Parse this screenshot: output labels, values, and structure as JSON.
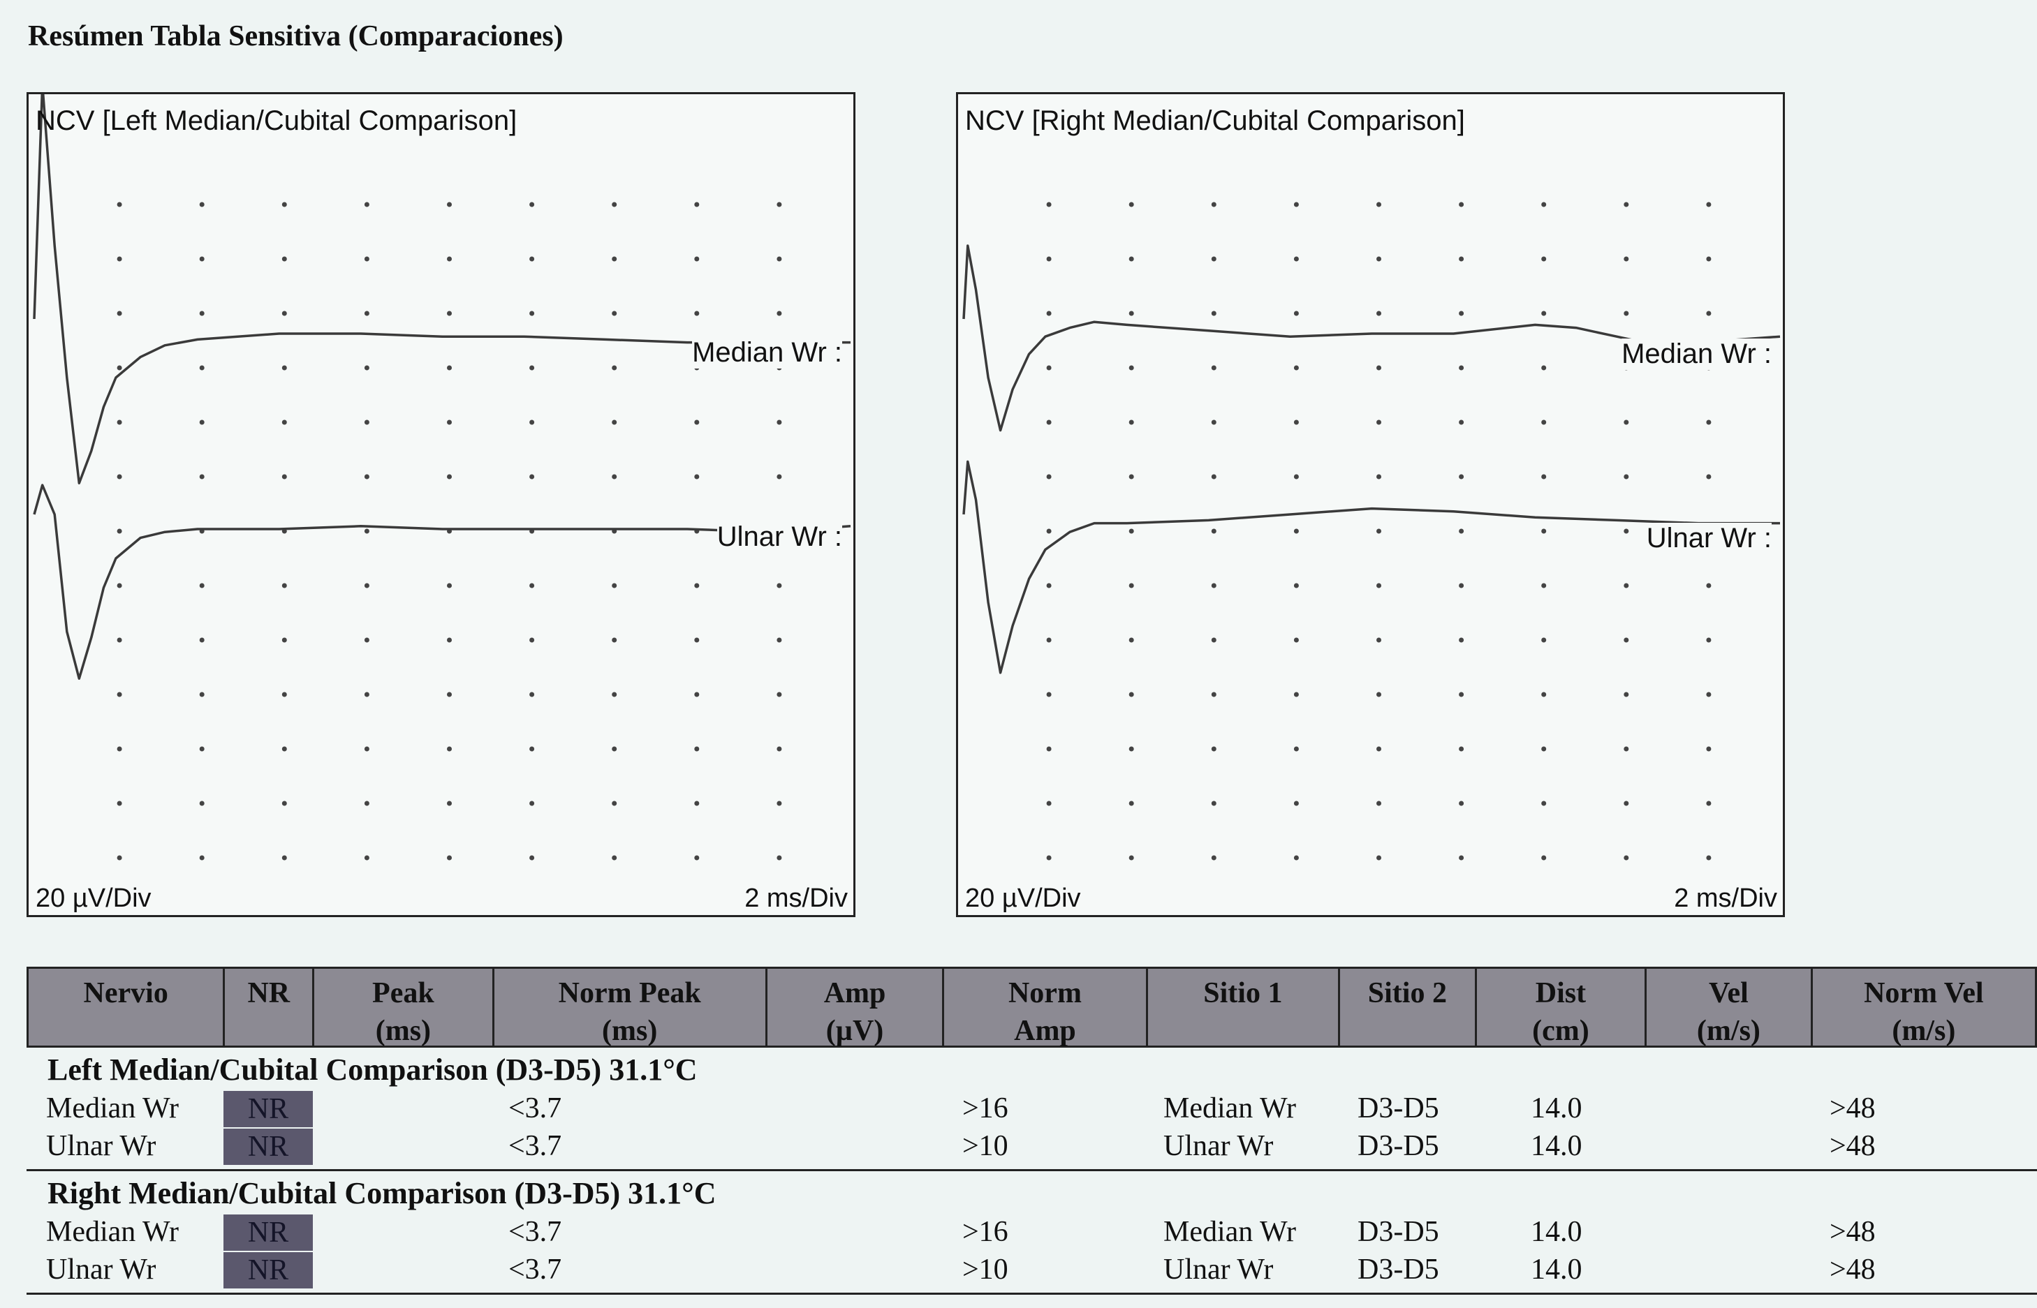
{
  "page_title": "Resúmen Tabla Sensitiva (Comparaciones)",
  "charts": [
    {
      "title": "NCV [Left Median/Cubital Comparison]",
      "y_scale": "20 µV/Div",
      "x_scale": "2 ms/Div",
      "traces": [
        "Median Wr :",
        "Ulnar Wr :"
      ]
    },
    {
      "title": "NCV [Right Median/Cubital Comparison]",
      "y_scale": "20 µV/Div",
      "x_scale": "2 ms/Div",
      "traces": [
        "Median Wr :",
        "Ulnar Wr :"
      ]
    }
  ],
  "chart_data": [
    {
      "type": "line",
      "title": "NCV [Left Median/Cubital Comparison]",
      "grid": true,
      "x_divisions": 10,
      "y_divisions": 10,
      "x_per_div": "2 ms/Div",
      "y_per_div": "20 µV/Div",
      "series": [
        {
          "name": "Median Wr :",
          "x": [
            0,
            0.1,
            0.25,
            0.4,
            0.55,
            0.7,
            0.85,
            1.0,
            1.3,
            1.6,
            2.0,
            3.0,
            4.0,
            5.0,
            6.0,
            7.0,
            8.0,
            9.0,
            10.0
          ],
          "y": [
            0,
            80,
            25,
            -20,
            -56,
            -45,
            -30,
            -20,
            -13,
            -9,
            -7,
            -5,
            -5,
            -6,
            -6,
            -7,
            -8,
            -8,
            -8
          ]
        },
        {
          "name": "Ulnar Wr :",
          "x": [
            0,
            0.1,
            0.25,
            0.4,
            0.55,
            0.7,
            0.85,
            1.0,
            1.3,
            1.6,
            2.0,
            3.0,
            4.0,
            5.0,
            6.0,
            7.0,
            8.0,
            9.0,
            10.0
          ],
          "y": [
            0,
            10,
            0,
            -40,
            -56,
            -42,
            -25,
            -15,
            -8,
            -6,
            -5,
            -5,
            -4,
            -5,
            -5,
            -5,
            -5,
            -6,
            -4
          ]
        }
      ]
    },
    {
      "type": "line",
      "title": "NCV [Right Median/Cubital Comparison]",
      "grid": true,
      "x_divisions": 10,
      "y_divisions": 10,
      "x_per_div": "2 ms/Div",
      "y_per_div": "20 µV/Div",
      "series": [
        {
          "name": "Median Wr :",
          "x": [
            0,
            0.05,
            0.15,
            0.3,
            0.45,
            0.6,
            0.8,
            1.0,
            1.3,
            1.6,
            2.0,
            3.0,
            4.0,
            5.0,
            6.0,
            7.0,
            7.5,
            8.0,
            8.5,
            9.0,
            10.0
          ],
          "y": [
            0,
            25,
            10,
            -20,
            -38,
            -24,
            -12,
            -6,
            -3,
            -1,
            -2,
            -4,
            -6,
            -5,
            -5,
            -2,
            -3,
            -6,
            -9,
            -8,
            -6
          ]
        },
        {
          "name": "Ulnar Wr :",
          "x": [
            0,
            0.05,
            0.15,
            0.3,
            0.45,
            0.6,
            0.8,
            1.0,
            1.3,
            1.6,
            2.0,
            3.0,
            4.0,
            5.0,
            6.0,
            7.0,
            8.0,
            9.0,
            10.0
          ],
          "y": [
            0,
            18,
            5,
            -30,
            -54,
            -38,
            -22,
            -12,
            -6,
            -3,
            -3,
            -2,
            0,
            2,
            1,
            -1,
            -2,
            -3,
            -3
          ]
        }
      ]
    }
  ],
  "table": {
    "headers": [
      "Nervio",
      "NR",
      "Peak\n(ms)",
      "Norm Peak\n(ms)",
      "Amp\n(µV)",
      "Norm\nAmp",
      "Sitio 1",
      "Sitio 2",
      "Dist\n(cm)",
      "Vel\n(m/s)",
      "Norm Vel\n(m/s)"
    ],
    "groups": [
      {
        "title": "Left Median/Cubital Comparison (D3-D5)  31.1°C",
        "rows": [
          {
            "nervio": "Median Wr",
            "nr": "NR",
            "peak": "",
            "norm_peak": "<3.7",
            "amp": "",
            "norm_amp": ">16",
            "sitio1": "Median Wr",
            "sitio2": "D3-D5",
            "dist": "14.0",
            "vel": "",
            "norm_vel": ">48"
          },
          {
            "nervio": "Ulnar Wr",
            "nr": "NR",
            "peak": "",
            "norm_peak": "<3.7",
            "amp": "",
            "norm_amp": ">10",
            "sitio1": "Ulnar Wr",
            "sitio2": "D3-D5",
            "dist": "14.0",
            "vel": "",
            "norm_vel": ">48"
          }
        ]
      },
      {
        "title": "Right Median/Cubital Comparison (D3-D5)  31.1°C",
        "rows": [
          {
            "nervio": "Median Wr",
            "nr": "NR",
            "peak": "",
            "norm_peak": "<3.7",
            "amp": "",
            "norm_amp": ">16",
            "sitio1": "Median Wr",
            "sitio2": "D3-D5",
            "dist": "14.0",
            "vel": "",
            "norm_vel": ">48"
          },
          {
            "nervio": "Ulnar Wr",
            "nr": "NR",
            "peak": "",
            "norm_peak": "<3.7",
            "amp": "",
            "norm_amp": ">10",
            "sitio1": "Ulnar Wr",
            "sitio2": "D3-D5",
            "dist": "14.0",
            "vel": "",
            "norm_vel": ">48"
          }
        ]
      }
    ]
  },
  "colors": {
    "background": "#eef4f3",
    "trace": "#3a3a3a",
    "header_fill": "#8c8a93",
    "nr_badge": "#5b586d"
  }
}
